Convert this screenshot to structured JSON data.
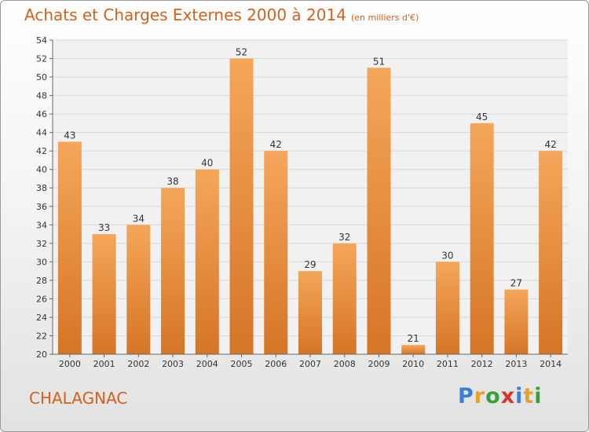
{
  "header": {
    "title": "Achats et Charges Externes 2000 à 2014",
    "unit_note": "(en milliers d'€)"
  },
  "place_name": "CHALAGNAC",
  "logo": {
    "letters": [
      "P",
      "r",
      "o",
      "x",
      "i",
      "t",
      "i"
    ],
    "colors": [
      "#3a7fd0",
      "#e8a02a",
      "#3a9f3a",
      "#d8352a",
      "#3a7fd0",
      "#e8a02a",
      "#3a9f3a"
    ]
  },
  "colors": {
    "bar_light": "#f5a65a",
    "bar_dark": "#d57526",
    "grid": "#d8d8d8",
    "axis_text": "#333333"
  },
  "chart_data": {
    "type": "bar",
    "categories": [
      "2000",
      "2001",
      "2002",
      "2003",
      "2004",
      "2005",
      "2006",
      "2007",
      "2008",
      "2009",
      "2010",
      "2011",
      "2012",
      "2013",
      "2014"
    ],
    "values": [
      43,
      33,
      34,
      38,
      40,
      52,
      42,
      29,
      32,
      51,
      21,
      30,
      45,
      27,
      42
    ],
    "title": "Achats et Charges Externes 2000 à 2014",
    "ylim": [
      20,
      54
    ],
    "yticks": [
      20,
      22,
      24,
      26,
      28,
      30,
      32,
      34,
      36,
      38,
      40,
      42,
      44,
      46,
      48,
      50,
      52,
      54
    ],
    "grid": true
  }
}
